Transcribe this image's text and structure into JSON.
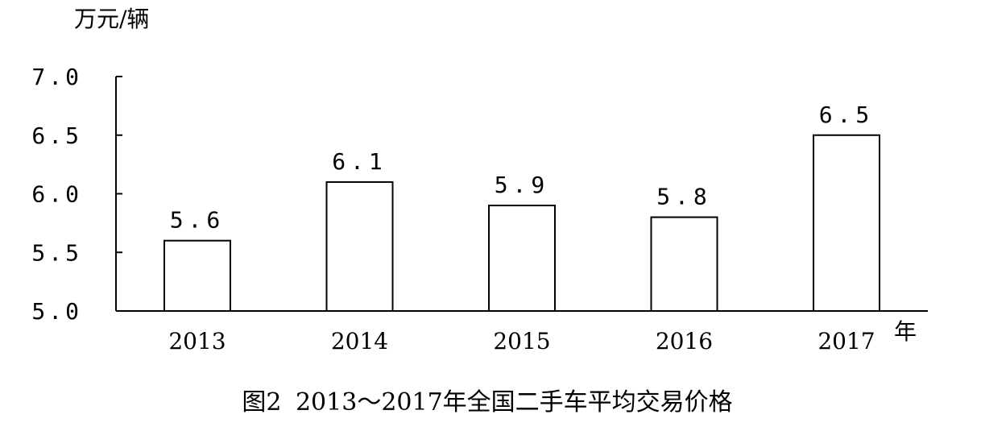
{
  "chart_data": {
    "type": "bar",
    "unit_label": "万元/辆",
    "xaxis_unit": "年",
    "categories": [
      "2013",
      "2014",
      "2015",
      "2016",
      "2017"
    ],
    "values": [
      5.6,
      6.1,
      5.9,
      5.8,
      6.5
    ],
    "value_labels": [
      "5.6",
      "6.1",
      "5.9",
      "5.8",
      "6.5"
    ],
    "ylim": [
      5.0,
      7.0
    ],
    "yticks": [
      "5.0",
      "5.5",
      "6.0",
      "6.5",
      "7.0"
    ],
    "ytick_values": [
      5.0,
      5.5,
      6.0,
      6.5,
      7.0
    ],
    "figure_number": "图2",
    "title": "2013～2017年全国二手车平均交易价格",
    "grid": false,
    "bar_fill": "#ffffff",
    "bar_stroke": "#000000"
  }
}
